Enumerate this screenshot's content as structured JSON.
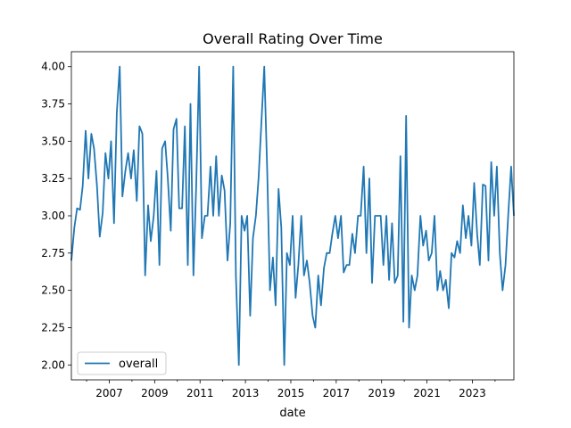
{
  "chart_data": {
    "type": "line",
    "title": "Overall Rating Over Time",
    "xlabel": "date",
    "ylabel": "",
    "x_range": [
      2005.33,
      2024.83
    ],
    "ylim": [
      1.9,
      4.1
    ],
    "x_ticks": [
      2007,
      2009,
      2011,
      2013,
      2015,
      2017,
      2019,
      2021,
      2023
    ],
    "y_ticks": [
      "2.00",
      "2.25",
      "2.50",
      "2.75",
      "3.00",
      "3.25",
      "3.50",
      "3.75",
      "4.00"
    ],
    "legend": {
      "position": "lower-left",
      "entries": [
        "overall"
      ]
    },
    "grid": false,
    "color": "#1f77b4",
    "series": [
      {
        "name": "overall",
        "points": [
          [
            2005.33,
            2.7
          ],
          [
            2005.46,
            2.92
          ],
          [
            2005.58,
            3.05
          ],
          [
            2005.71,
            3.04
          ],
          [
            2005.83,
            3.2
          ],
          [
            2005.96,
            3.57
          ],
          [
            2006.08,
            3.25
          ],
          [
            2006.21,
            3.55
          ],
          [
            2006.33,
            3.45
          ],
          [
            2006.46,
            3.2
          ],
          [
            2006.58,
            2.86
          ],
          [
            2006.71,
            3.02
          ],
          [
            2006.83,
            3.42
          ],
          [
            2006.96,
            3.25
          ],
          [
            2007.08,
            3.5
          ],
          [
            2007.21,
            2.95
          ],
          [
            2007.33,
            3.69
          ],
          [
            2007.46,
            4.0
          ],
          [
            2007.58,
            3.13
          ],
          [
            2007.71,
            3.3
          ],
          [
            2007.83,
            3.42
          ],
          [
            2007.96,
            3.25
          ],
          [
            2008.08,
            3.44
          ],
          [
            2008.21,
            3.1
          ],
          [
            2008.33,
            3.6
          ],
          [
            2008.46,
            3.55
          ],
          [
            2008.58,
            2.6
          ],
          [
            2008.71,
            3.07
          ],
          [
            2008.83,
            2.83
          ],
          [
            2008.96,
            3.0
          ],
          [
            2009.08,
            3.3
          ],
          [
            2009.21,
            2.67
          ],
          [
            2009.33,
            3.45
          ],
          [
            2009.46,
            3.5
          ],
          [
            2009.58,
            3.25
          ],
          [
            2009.71,
            2.9
          ],
          [
            2009.83,
            3.58
          ],
          [
            2009.96,
            3.65
          ],
          [
            2010.08,
            3.05
          ],
          [
            2010.21,
            3.05
          ],
          [
            2010.33,
            3.6
          ],
          [
            2010.46,
            2.67
          ],
          [
            2010.58,
            3.75
          ],
          [
            2010.71,
            2.6
          ],
          [
            2010.83,
            3.2
          ],
          [
            2010.96,
            4.0
          ],
          [
            2011.08,
            2.85
          ],
          [
            2011.21,
            3.0
          ],
          [
            2011.33,
            3.0
          ],
          [
            2011.46,
            3.33
          ],
          [
            2011.58,
            3.0
          ],
          [
            2011.71,
            3.4
          ],
          [
            2011.83,
            3.0
          ],
          [
            2011.96,
            3.27
          ],
          [
            2012.08,
            3.17
          ],
          [
            2012.21,
            2.7
          ],
          [
            2012.33,
            2.95
          ],
          [
            2012.46,
            4.0
          ],
          [
            2012.58,
            2.6
          ],
          [
            2012.71,
            2.0
          ],
          [
            2012.83,
            3.0
          ],
          [
            2012.96,
            2.9
          ],
          [
            2013.08,
            3.0
          ],
          [
            2013.21,
            2.33
          ],
          [
            2013.33,
            2.85
          ],
          [
            2013.46,
            3.0
          ],
          [
            2013.58,
            3.25
          ],
          [
            2013.71,
            3.65
          ],
          [
            2013.83,
            4.0
          ],
          [
            2013.96,
            3.3
          ],
          [
            2014.08,
            2.5
          ],
          [
            2014.21,
            2.72
          ],
          [
            2014.33,
            2.4
          ],
          [
            2014.46,
            3.18
          ],
          [
            2014.58,
            2.92
          ],
          [
            2014.71,
            2.0
          ],
          [
            2014.83,
            2.75
          ],
          [
            2014.96,
            2.67
          ],
          [
            2015.08,
            3.0
          ],
          [
            2015.21,
            2.45
          ],
          [
            2015.33,
            2.67
          ],
          [
            2015.46,
            3.0
          ],
          [
            2015.58,
            2.6
          ],
          [
            2015.71,
            2.7
          ],
          [
            2015.83,
            2.55
          ],
          [
            2015.96,
            2.33
          ],
          [
            2016.08,
            2.25
          ],
          [
            2016.21,
            2.6
          ],
          [
            2016.33,
            2.4
          ],
          [
            2016.46,
            2.65
          ],
          [
            2016.58,
            2.75
          ],
          [
            2016.71,
            2.75
          ],
          [
            2016.83,
            2.88
          ],
          [
            2016.96,
            3.0
          ],
          [
            2017.08,
            2.85
          ],
          [
            2017.21,
            3.0
          ],
          [
            2017.33,
            2.62
          ],
          [
            2017.46,
            2.67
          ],
          [
            2017.58,
            2.67
          ],
          [
            2017.71,
            2.88
          ],
          [
            2017.83,
            2.75
          ],
          [
            2017.96,
            3.0
          ],
          [
            2018.08,
            3.0
          ],
          [
            2018.21,
            3.33
          ],
          [
            2018.33,
            2.75
          ],
          [
            2018.46,
            3.25
          ],
          [
            2018.58,
            2.55
          ],
          [
            2018.71,
            3.0
          ],
          [
            2018.83,
            3.0
          ],
          [
            2018.96,
            3.0
          ],
          [
            2019.08,
            2.67
          ],
          [
            2019.21,
            3.0
          ],
          [
            2019.33,
            2.57
          ],
          [
            2019.46,
            2.95
          ],
          [
            2019.58,
            2.55
          ],
          [
            2019.71,
            2.6
          ],
          [
            2019.83,
            3.4
          ],
          [
            2019.96,
            2.29
          ],
          [
            2020.08,
            3.67
          ],
          [
            2020.21,
            2.25
          ],
          [
            2020.33,
            2.6
          ],
          [
            2020.46,
            2.5
          ],
          [
            2020.58,
            2.6
          ],
          [
            2020.71,
            3.0
          ],
          [
            2020.83,
            2.8
          ],
          [
            2020.96,
            2.9
          ],
          [
            2021.08,
            2.7
          ],
          [
            2021.21,
            2.75
          ],
          [
            2021.33,
            3.0
          ],
          [
            2021.46,
            2.5
          ],
          [
            2021.58,
            2.63
          ],
          [
            2021.71,
            2.5
          ],
          [
            2021.83,
            2.57
          ],
          [
            2021.96,
            2.38
          ],
          [
            2022.08,
            2.75
          ],
          [
            2022.21,
            2.72
          ],
          [
            2022.33,
            2.83
          ],
          [
            2022.46,
            2.75
          ],
          [
            2022.58,
            3.07
          ],
          [
            2022.71,
            2.85
          ],
          [
            2022.83,
            3.0
          ],
          [
            2022.96,
            2.8
          ],
          [
            2023.08,
            3.22
          ],
          [
            2023.21,
            2.88
          ],
          [
            2023.33,
            2.67
          ],
          [
            2023.46,
            3.21
          ],
          [
            2023.58,
            3.2
          ],
          [
            2023.71,
            2.7
          ],
          [
            2023.83,
            3.36
          ],
          [
            2023.96,
            3.0
          ],
          [
            2024.08,
            3.33
          ],
          [
            2024.21,
            2.75
          ],
          [
            2024.33,
            2.5
          ],
          [
            2024.46,
            2.67
          ],
          [
            2024.58,
            3.0
          ],
          [
            2024.71,
            3.33
          ],
          [
            2024.83,
            3.0
          ]
        ]
      }
    ]
  }
}
